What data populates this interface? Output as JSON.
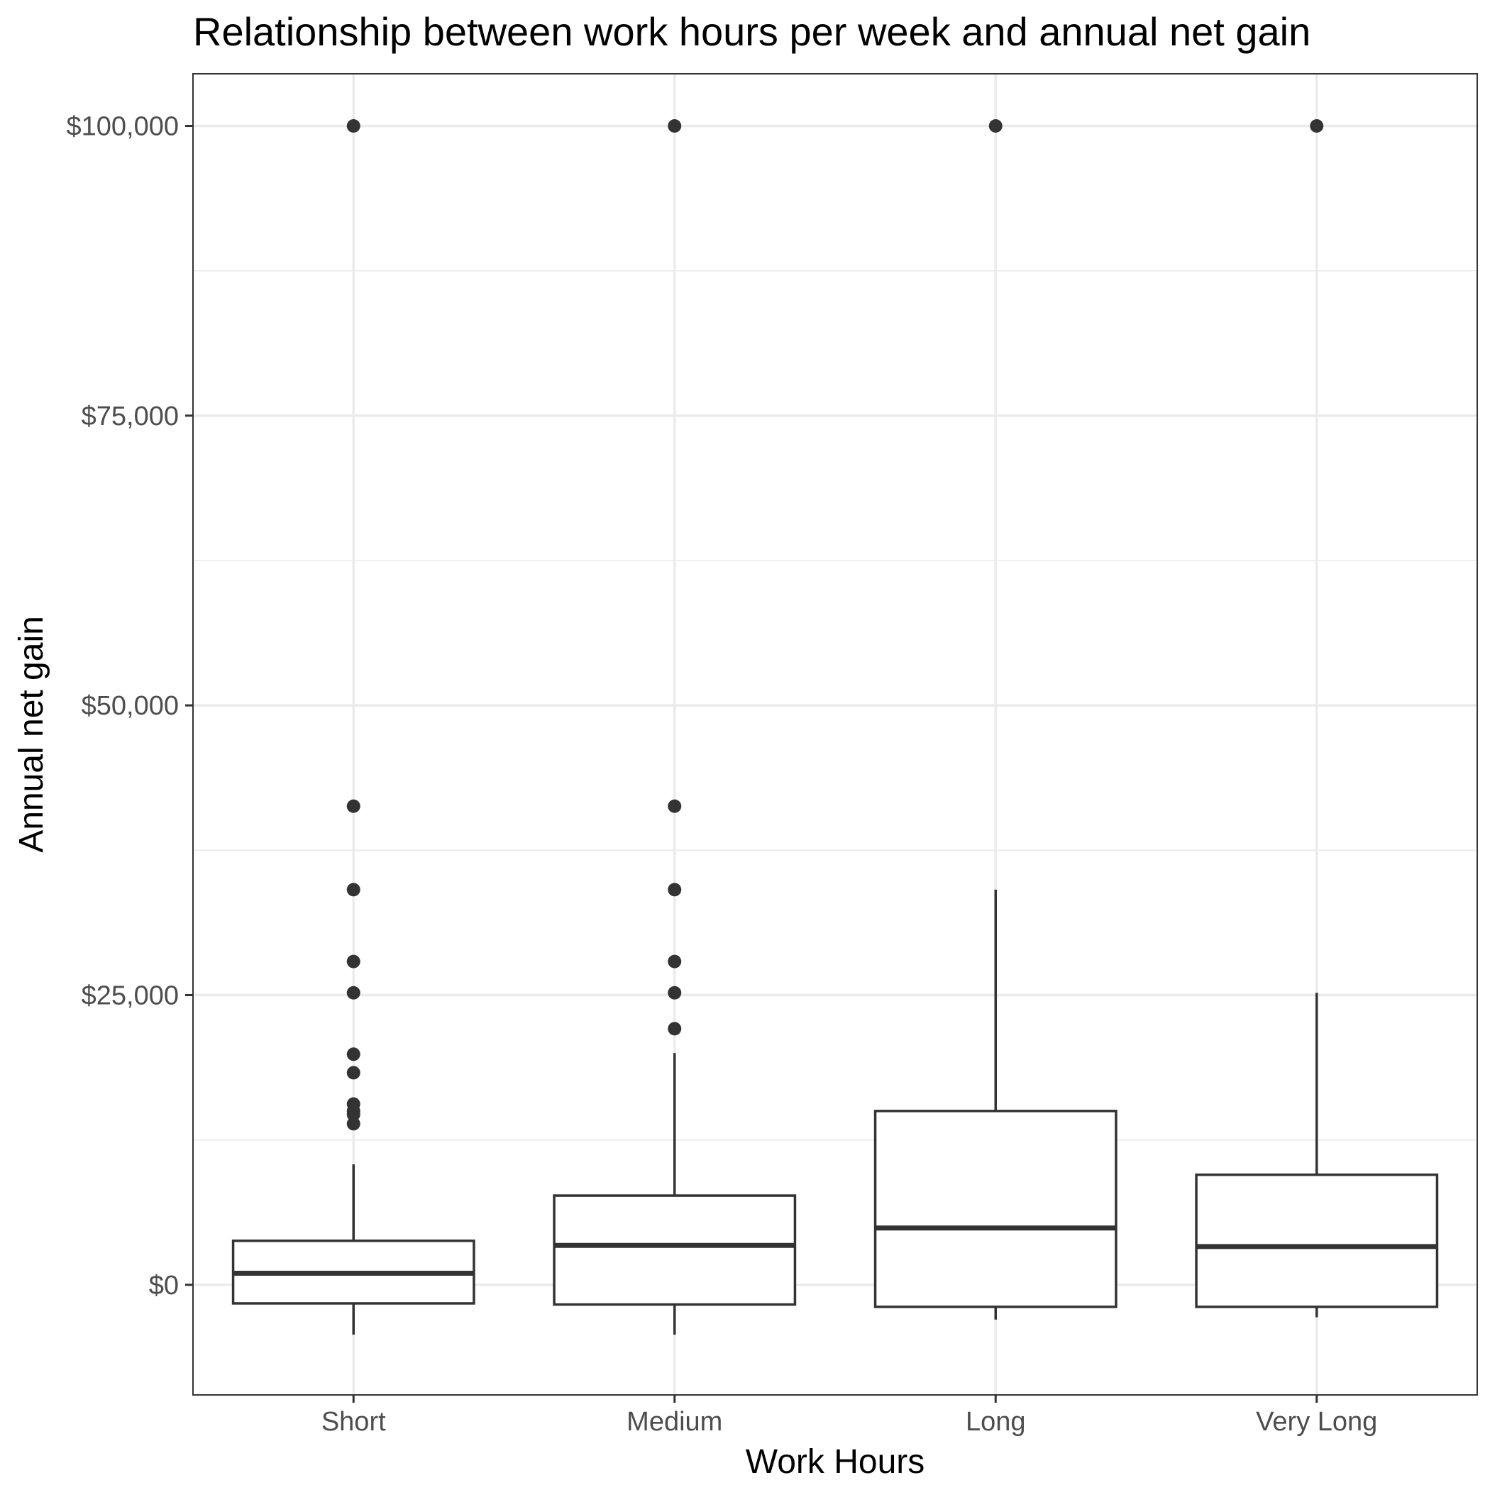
{
  "chart_data": {
    "type": "boxplot",
    "title": "Relationship between work hours per week and annual net gain",
    "xlabel": "Work Hours",
    "ylabel": "Annual net gain",
    "categories": [
      "Short",
      "Medium",
      "Long",
      "Very Long"
    ],
    "ylim": [
      -9500,
      104500
    ],
    "y_ticks": [
      0,
      25000,
      50000,
      75000,
      100000
    ],
    "y_tick_labels": [
      "$0",
      "$25,000",
      "$50,000",
      "$75,000",
      "$100,000"
    ],
    "grid": true,
    "boxes": [
      {
        "category": "Short",
        "whisker_low": -4300,
        "q1": -1600,
        "median": 1000,
        "q3": 3800,
        "whisker_high": 10400,
        "outliers": [
          13900,
          14700,
          15000,
          15600,
          18300,
          19900,
          25200,
          27900,
          34100,
          41300,
          100000
        ]
      },
      {
        "category": "Medium",
        "whisker_low": -4300,
        "q1": -1700,
        "median": 3400,
        "q3": 7700,
        "whisker_high": 20000,
        "outliers": [
          22100,
          25200,
          27900,
          34100,
          41300,
          100000
        ]
      },
      {
        "category": "Long",
        "whisker_low": -3000,
        "q1": -1900,
        "median": 4900,
        "q3": 15000,
        "whisker_high": 34100,
        "outliers": [
          100000
        ]
      },
      {
        "category": "Very Long",
        "whisker_low": -2800,
        "q1": -1900,
        "median": 3300,
        "q3": 9500,
        "whisker_high": 25200,
        "outliers": [
          100000
        ]
      }
    ]
  }
}
